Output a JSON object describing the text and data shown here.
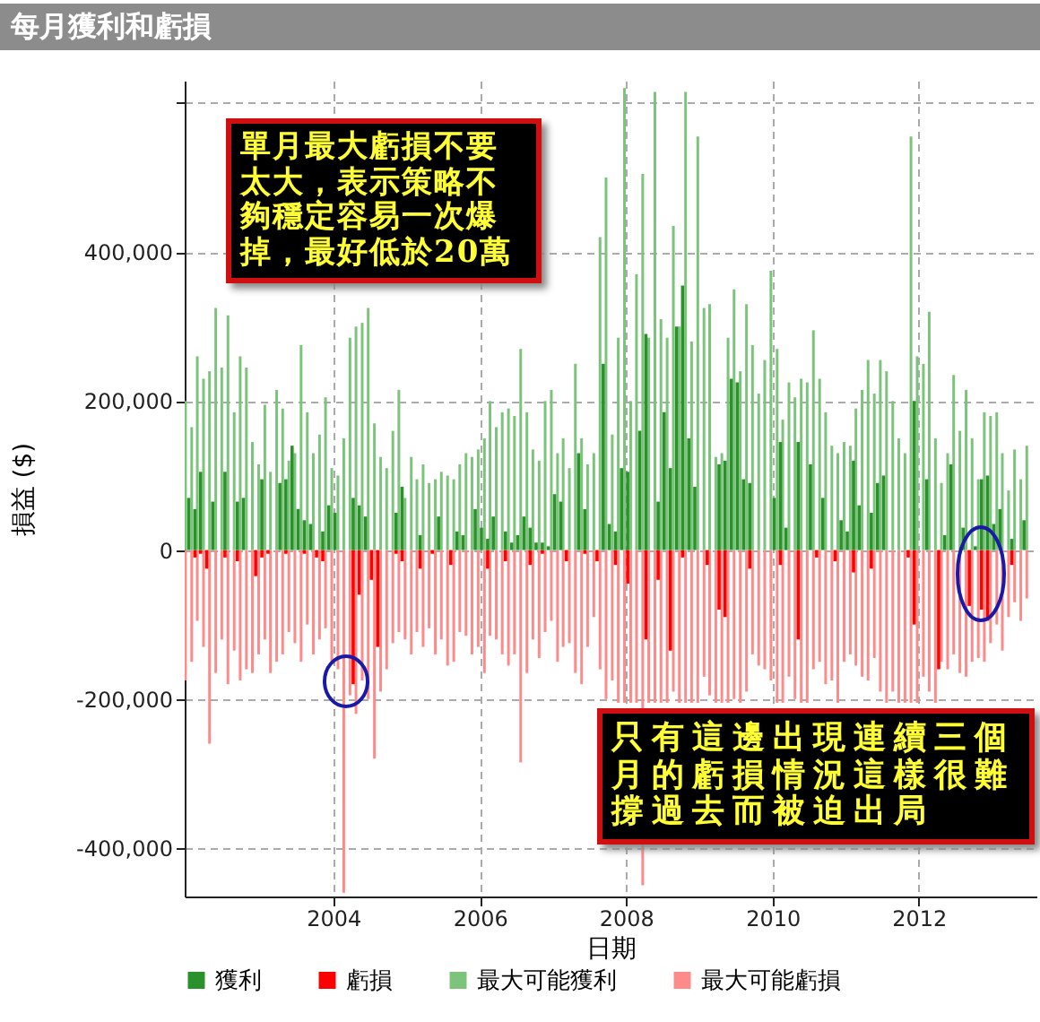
{
  "chart_data": {
    "type": "bar",
    "title": "每月獲利和虧損",
    "xlabel": "日期",
    "ylabel": "損益 ($)",
    "x": [
      "2002-01",
      "2002-02",
      "2002-03",
      "2002-04",
      "2002-05",
      "2002-06",
      "2002-07",
      "2002-08",
      "2002-09",
      "2002-10",
      "2002-11",
      "2002-12",
      "2003-01",
      "2003-02",
      "2003-03",
      "2003-04",
      "2003-05",
      "2003-06",
      "2003-07",
      "2003-08",
      "2003-09",
      "2003-10",
      "2003-11",
      "2003-12",
      "2004-01",
      "2004-02",
      "2004-03",
      "2004-04",
      "2004-05",
      "2004-06",
      "2004-07",
      "2004-08",
      "2004-09",
      "2004-10",
      "2004-11",
      "2004-12",
      "2005-01",
      "2005-02",
      "2005-03",
      "2005-04",
      "2005-05",
      "2005-06",
      "2005-07",
      "2005-08",
      "2005-09",
      "2005-10",
      "2005-11",
      "2005-12",
      "2006-01",
      "2006-02",
      "2006-03",
      "2006-04",
      "2006-05",
      "2006-06",
      "2006-07",
      "2006-08",
      "2006-09",
      "2006-10",
      "2006-11",
      "2006-12",
      "2007-01",
      "2007-02",
      "2007-03",
      "2007-04",
      "2007-05",
      "2007-06",
      "2007-07",
      "2007-08",
      "2007-09",
      "2007-10",
      "2007-11",
      "2007-12",
      "2008-01",
      "2008-02",
      "2008-03",
      "2008-04",
      "2008-05",
      "2008-06",
      "2008-07",
      "2008-08",
      "2008-09",
      "2008-10",
      "2008-11",
      "2008-12",
      "2009-01",
      "2009-02",
      "2009-03",
      "2009-04",
      "2009-05",
      "2009-06",
      "2009-07",
      "2009-08",
      "2009-09",
      "2009-10",
      "2009-11",
      "2009-12",
      "2010-01",
      "2010-02",
      "2010-03",
      "2010-04",
      "2010-05",
      "2010-06",
      "2010-07",
      "2010-08",
      "2010-09",
      "2010-10",
      "2010-11",
      "2010-12",
      "2011-01",
      "2011-02",
      "2011-03",
      "2011-04",
      "2011-05",
      "2011-06",
      "2011-07",
      "2011-08",
      "2011-09",
      "2011-10",
      "2011-11",
      "2011-12",
      "2012-01",
      "2012-02",
      "2012-03",
      "2012-04",
      "2012-05",
      "2012-06",
      "2012-07",
      "2012-08",
      "2012-09",
      "2012-10",
      "2012-11",
      "2012-12",
      "2013-01",
      "2013-02",
      "2013-03",
      "2013-04",
      "2013-05",
      "2013-06",
      "2013-07"
    ],
    "xlim": [
      "2001-12-20",
      "2013-08-10"
    ],
    "xticks": [
      "2004",
      "2006",
      "2008",
      "2010",
      "2012"
    ],
    "ylim": [
      -465000,
      630000
    ],
    "yticks": [
      {
        "value": -400000,
        "label": "-400,000"
      },
      {
        "value": -200000,
        "label": "-200,000"
      },
      {
        "value": 0,
        "label": "0"
      },
      {
        "value": 200000,
        "label": "200,000"
      },
      {
        "value": 400000,
        "label": "400,000"
      },
      {
        "value": 600000,
        "label": null
      }
    ],
    "grid": true,
    "legend": "bottom",
    "series": [
      {
        "name": "獲利",
        "color": "#2b922b",
        "values": [
          70000,
          55000,
          105000,
          null,
          65000,
          null,
          105000,
          null,
          65000,
          70000,
          null,
          null,
          95000,
          null,
          null,
          90000,
          95000,
          140000,
          55000,
          40000,
          35000,
          null,
          25000,
          60000,
          50000,
          null,
          null,
          70000,
          60000,
          45000,
          null,
          null,
          null,
          null,
          50000,
          85000,
          null,
          null,
          20000,
          null,
          null,
          45000,
          null,
          null,
          25000,
          20000,
          null,
          55000,
          30000,
          15000,
          45000,
          null,
          25000,
          10000,
          20000,
          45000,
          30000,
          10000,
          10000,
          5000,
          75000,
          65000,
          null,
          null,
          130000,
          55000,
          null,
          null,
          250000,
          35000,
          25000,
          110000,
          105000,
          null,
          160000,
          290000,
          null,
          65000,
          185000,
          110000,
          300000,
          355000,
          150000,
          85000,
          null,
          null,
          null,
          115000,
          120000,
          230000,
          225000,
          95000,
          90000,
          null,
          null,
          null,
          70000,
          145000,
          30000,
          null,
          145000,
          null,
          115000,
          null,
          70000,
          null,
          null,
          40000,
          25000,
          120000,
          60000,
          null,
          50000,
          90000,
          100000,
          null,
          null,
          null,
          null,
          200000,
          null,
          95000,
          null,
          null,
          20000,
          115000,
          null,
          30000,
          null,
          5000,
          95000,
          100000,
          35000,
          55000,
          null,
          15000,
          null,
          40000,
          null
        ]
      },
      {
        "name": "虧損",
        "color": "#ff0000",
        "values": [
          null,
          -10000,
          -5000,
          -25000,
          null,
          null,
          -10000,
          null,
          -15000,
          null,
          null,
          -35000,
          -10000,
          -5000,
          null,
          null,
          -5000,
          null,
          null,
          -5000,
          null,
          -10000,
          -15000,
          null,
          null,
          null,
          null,
          -180000,
          -60000,
          null,
          -40000,
          -130000,
          null,
          null,
          -5000,
          -15000,
          null,
          null,
          -25000,
          null,
          -5000,
          null,
          null,
          -20000,
          null,
          null,
          null,
          null,
          null,
          -25000,
          null,
          null,
          -15000,
          null,
          null,
          null,
          -20000,
          null,
          -5000,
          null,
          null,
          null,
          -15000,
          null,
          null,
          -5000,
          null,
          -15000,
          null,
          null,
          -20000,
          null,
          -45000,
          null,
          null,
          -120000,
          null,
          -40000,
          null,
          -135000,
          null,
          -10000,
          null,
          null,
          null,
          -20000,
          null,
          -80000,
          -90000,
          null,
          null,
          null,
          -25000,
          null,
          null,
          null,
          null,
          -20000,
          null,
          null,
          -120000,
          null,
          null,
          -10000,
          null,
          null,
          -15000,
          null,
          null,
          -30000,
          null,
          null,
          -25000,
          null,
          null,
          null,
          null,
          null,
          -10000,
          -100000,
          null,
          null,
          null,
          -160000,
          null,
          null,
          null,
          null,
          -75000,
          null,
          -80000,
          -95000,
          null,
          null,
          null,
          -20000,
          null,
          null,
          null
        ]
      },
      {
        "name": "最大可能獲利",
        "color": "#7cc47c",
        "values": [
          200000,
          165000,
          260000,
          230000,
          240000,
          325000,
          245000,
          315000,
          185000,
          260000,
          245000,
          145000,
          115000,
          195000,
          105000,
          215000,
          190000,
          120000,
          130000,
          275000,
          185000,
          130000,
          155000,
          205000,
          110000,
          100000,
          150000,
          285000,
          300000,
          305000,
          325000,
          170000,
          125000,
          110000,
          160000,
          215000,
          70000,
          125000,
          95000,
          115000,
          90000,
          95000,
          105000,
          100000,
          95000,
          115000,
          130000,
          125000,
          135000,
          150000,
          200000,
          165000,
          185000,
          190000,
          180000,
          270000,
          185000,
          135000,
          120000,
          200000,
          215000,
          130000,
          150000,
          110000,
          250000,
          150000,
          115000,
          130000,
          420000,
          500000,
          155000,
          285000,
          620000,
          200000,
          370000,
          505000,
          285000,
          615000,
          310000,
          285000,
          435000,
          300000,
          615000,
          280000,
          555000,
          325000,
          330000,
          125000,
          130000,
          285000,
          350000,
          240000,
          330000,
          275000,
          210000,
          255000,
          375000,
          270000,
          175000,
          225000,
          205000,
          230000,
          225000,
          295000,
          230000,
          185000,
          140000,
          130000,
          145000,
          140000,
          190000,
          215000,
          255000,
          210000,
          255000,
          240000,
          200000,
          150000,
          130000,
          555000,
          260000,
          250000,
          320000,
          150000,
          90000,
          130000,
          235000,
          160000,
          215000,
          150000,
          95000,
          185000,
          180000,
          185000,
          130000,
          80000,
          135000,
          95000,
          140000
        ]
      },
      {
        "name": "最大可能虧損",
        "color": "#ff8a8a",
        "values": [
          -175000,
          -150000,
          -95000,
          -130000,
          -260000,
          -165000,
          -120000,
          -180000,
          -135000,
          -175000,
          -160000,
          -165000,
          -140000,
          -120000,
          -165000,
          -150000,
          -140000,
          -110000,
          -125000,
          -150000,
          -100000,
          -140000,
          -120000,
          -105000,
          -150000,
          -160000,
          -460000,
          -195000,
          -220000,
          -175000,
          -200000,
          -280000,
          -190000,
          -160000,
          -125000,
          -110000,
          -120000,
          -140000,
          -110000,
          -130000,
          -105000,
          -140000,
          -120000,
          -155000,
          -150000,
          -110000,
          -115000,
          -140000,
          -130000,
          -165000,
          -115000,
          -120000,
          -140000,
          -155000,
          -140000,
          -285000,
          -165000,
          -120000,
          -145000,
          -110000,
          -95000,
          -150000,
          -130000,
          -125000,
          -165000,
          -180000,
          -130000,
          -90000,
          -160000,
          -200000,
          -175000,
          -205000,
          -205000,
          -205000,
          -205000,
          -450000,
          -205000,
          -205000,
          -205000,
          -205000,
          -190000,
          -205000,
          -205000,
          -205000,
          -205000,
          -170000,
          -195000,
          -205000,
          -205000,
          -205000,
          -200000,
          -205000,
          -190000,
          -140000,
          -155000,
          -160000,
          -175000,
          -205000,
          -205000,
          -170000,
          -200000,
          -205000,
          -205000,
          -160000,
          -150000,
          -180000,
          -175000,
          -205000,
          -150000,
          -140000,
          -155000,
          -170000,
          -175000,
          -145000,
          -190000,
          -205000,
          -190000,
          -205000,
          -205000,
          -205000,
          -205000,
          -170000,
          -190000,
          -205000,
          -150000,
          -160000,
          -140000,
          -165000,
          -170000,
          -150000,
          -145000,
          -150000,
          -125000,
          -100000,
          -135000,
          -90000,
          -70000,
          -95000,
          -65000
        ]
      }
    ],
    "annotations": [
      "單月最大虧損不要太大，表示策略不夠穩定容易一次爆掉，最好低於20萬",
      "只有這邊出現連續三個月的虧損情況這樣很難撐過去而被迫出局"
    ]
  }
}
